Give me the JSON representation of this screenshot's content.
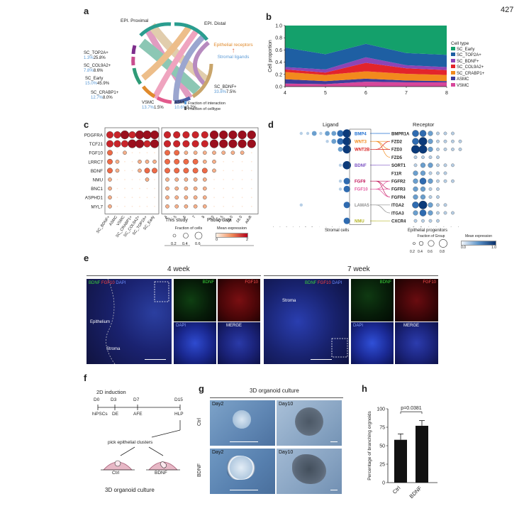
{
  "page_number": "427",
  "panels": {
    "a": "a",
    "b": "b",
    "c": "c",
    "d": "d",
    "e": "e",
    "f": "f",
    "g": "g",
    "h": "h"
  },
  "panel_a": {
    "epi_proximal": "EPI. Proximal",
    "epi_distal": "EPI. Distal",
    "groups": [
      {
        "name": "SC_TOP2A+",
        "v1": "1.3%",
        "v2": "25.8%",
        "color": "#7d2d8c"
      },
      {
        "name": "SC_COL9A2+",
        "v1": "7.8%",
        "v2": "8.6%",
        "color": "#c94d8f"
      },
      {
        "name": "SC_Early",
        "v1": "15.0%",
        "v2": "45.9%",
        "color": "#2f9b77"
      },
      {
        "name": "SC_CRABP1+",
        "v1": "12.7%",
        "v2": "8.0%",
        "color": "#e08a2c"
      },
      {
        "name": "VSMC",
        "v1": "13.7%",
        "v2": "1.5%",
        "color": "#e25a8c"
      },
      {
        "name": "ASMC",
        "v1": "10.6%",
        "v2": "3.2%",
        "color": "#4a5fa8"
      },
      {
        "name": "SC_BDNF+",
        "v1": "33.8%",
        "v2": "7.5%",
        "color": "#c9a56b"
      }
    ],
    "arrow_top": "Epithelial receptors",
    "arrow_bottom": "Stromal ligands",
    "legend": [
      "Fraction of interaction",
      "Fraction of celltype"
    ]
  },
  "chart_data": [
    {
      "panel": "b",
      "type": "area",
      "x": [
        4,
        5,
        6,
        7,
        8
      ],
      "xticks": [
        "4",
        "5",
        "6",
        "7",
        "8"
      ],
      "ylabel": "Cell proportion",
      "yticks": [
        "0.0",
        "0.2",
        "0.4",
        "0.6",
        "0.8",
        "1.0"
      ],
      "ylim": [
        0,
        1
      ],
      "legend_title": "Cell type",
      "series": [
        {
          "name": "VSMC",
          "color": "#d6479b",
          "values": [
            0.05,
            0.04,
            0.08,
            0.07,
            0.07
          ]
        },
        {
          "name": "ASMC",
          "color": "#3d3d9c",
          "values": [
            0.07,
            0.05,
            0.05,
            0.03,
            0.02
          ]
        },
        {
          "name": "SC_CRABP1+",
          "color": "#f28a1d",
          "values": [
            0.12,
            0.1,
            0.12,
            0.11,
            0.1
          ]
        },
        {
          "name": "SC_COL9A2+",
          "color": "#e3242b",
          "values": [
            0.04,
            0.04,
            0.14,
            0.09,
            0.08
          ]
        },
        {
          "name": "SC_BDNF+",
          "color": "#8e44b5",
          "values": [
            0.04,
            0.05,
            0.09,
            0.05,
            0.05
          ]
        },
        {
          "name": "SC_TOP2A+",
          "color": "#1e5fa3",
          "values": [
            0.32,
            0.25,
            0.22,
            0.2,
            0.2
          ]
        },
        {
          "name": "SC_Early",
          "color": "#14a06b",
          "values": [
            0.36,
            0.47,
            0.3,
            0.45,
            0.48
          ]
        }
      ]
    }
  ],
  "panel_c": {
    "genes": [
      "PDGFRA",
      "TCF21",
      "FGF10",
      "LRRC7",
      "BDNF",
      "NMU",
      "BNC1",
      "ASPHD1",
      "MYL7"
    ],
    "left_x": [
      "SC_BDNF+",
      "ASMC",
      "VSMC",
      "SC_CRABP1+",
      "SC_COL9A2+",
      "SC_TOP2A+",
      "SC_Early"
    ],
    "right_x": [
      "4",
      "5",
      "6",
      "7",
      "8",
      "10",
      "11.5",
      "15.0",
      "18.0",
      "adult"
    ],
    "this_study": "This study",
    "public_data": "Public data",
    "size_title": "Fraction of cells",
    "size_ticks": [
      "0.2",
      "0.4",
      "0.6"
    ],
    "color_title": "Mean expression",
    "color_ticks": [
      "0",
      "2"
    ]
  },
  "panel_d": {
    "ligand": "Ligand",
    "receptor": "Receptor",
    "ligands": [
      {
        "name": "BMP4",
        "color": "#1f6fd1"
      },
      {
        "name": "WNT3",
        "color": "#f28a1d"
      },
      {
        "name": "WNT2B",
        "color": "#d92121"
      },
      {
        "name": "BDNF",
        "color": "#7a4fc2"
      },
      {
        "name": "FGF9",
        "color": "#c2185b"
      },
      {
        "name": "FGF10",
        "color": "#e35aa0"
      },
      {
        "name": "LAMA5",
        "color": "#8c8c8c"
      },
      {
        "name": "NMU",
        "color": "#b5b526"
      }
    ],
    "receptors": [
      "BMPR1A",
      "FZD2",
      "FZD3",
      "FZD5",
      "SORT1",
      "F11R",
      "FGFR2",
      "FGFR3",
      "FGFR4",
      "ITGA2",
      "ITGA3",
      "CXCR4"
    ],
    "left_x": [
      "Proerythroblasts",
      "Neural crests",
      "Endothelium",
      "Macrophages",
      "Epithelial progenitors",
      "ASMC",
      "VSMC",
      "SC_COL9A2+",
      "SC_CRABP1+",
      "SC_Early",
      "SC_TOP2A+",
      "SC_BDNF+"
    ],
    "stromal_cells": "Stromal cells",
    "right_x": [
      "EPI. Proximal",
      "EPI. Distal",
      "Stromal cells",
      "Macrophages",
      "Endothelium",
      "Neural crests",
      "Proerythroblasts"
    ],
    "epithelial_progenitors": "Epithelial progenitors",
    "size_title": "Fraction of Group",
    "size_ticks": [
      "0.2",
      "0.4",
      "0.6",
      "0.8"
    ],
    "color_title": "Mean expression",
    "color_ticks": [
      "0.0",
      "1.0"
    ]
  },
  "panel_e": {
    "week4": "4 week",
    "week7": "7 week",
    "bdnf": "BDNF",
    "fgf10": "FGF10",
    "dapi": "DAPI",
    "merge": "MERGE",
    "epithelium": "Epithelium",
    "stroma": "Stroma"
  },
  "panel_f": {
    "title": "2D induction",
    "days": [
      "D0",
      "D3",
      "D7",
      "D15"
    ],
    "stages": [
      "hiPSCs",
      "DE",
      "AFE",
      "HLP"
    ],
    "pick": "pick epithelial clusters",
    "ctrl": "Ctrl",
    "bdnf": "BDNF",
    "footer": "3D organoid culture"
  },
  "panel_g": {
    "title": "3D organoid culture",
    "day2": "Day2",
    "day10": "Day10",
    "ctrl": "Ctrl",
    "bdnf": "BDNF"
  },
  "chart_data_h": {
    "type": "bar",
    "categories": [
      "Ctrl",
      "BDNF"
    ],
    "values": [
      58,
      77
    ],
    "errors": [
      8,
      7
    ],
    "ylabel": "Percentage of branching orgnoids",
    "yticks": [
      "0",
      "25",
      "50",
      "75",
      "100"
    ],
    "ylim": [
      0,
      100
    ],
    "pvalue": "p=0.0381"
  }
}
